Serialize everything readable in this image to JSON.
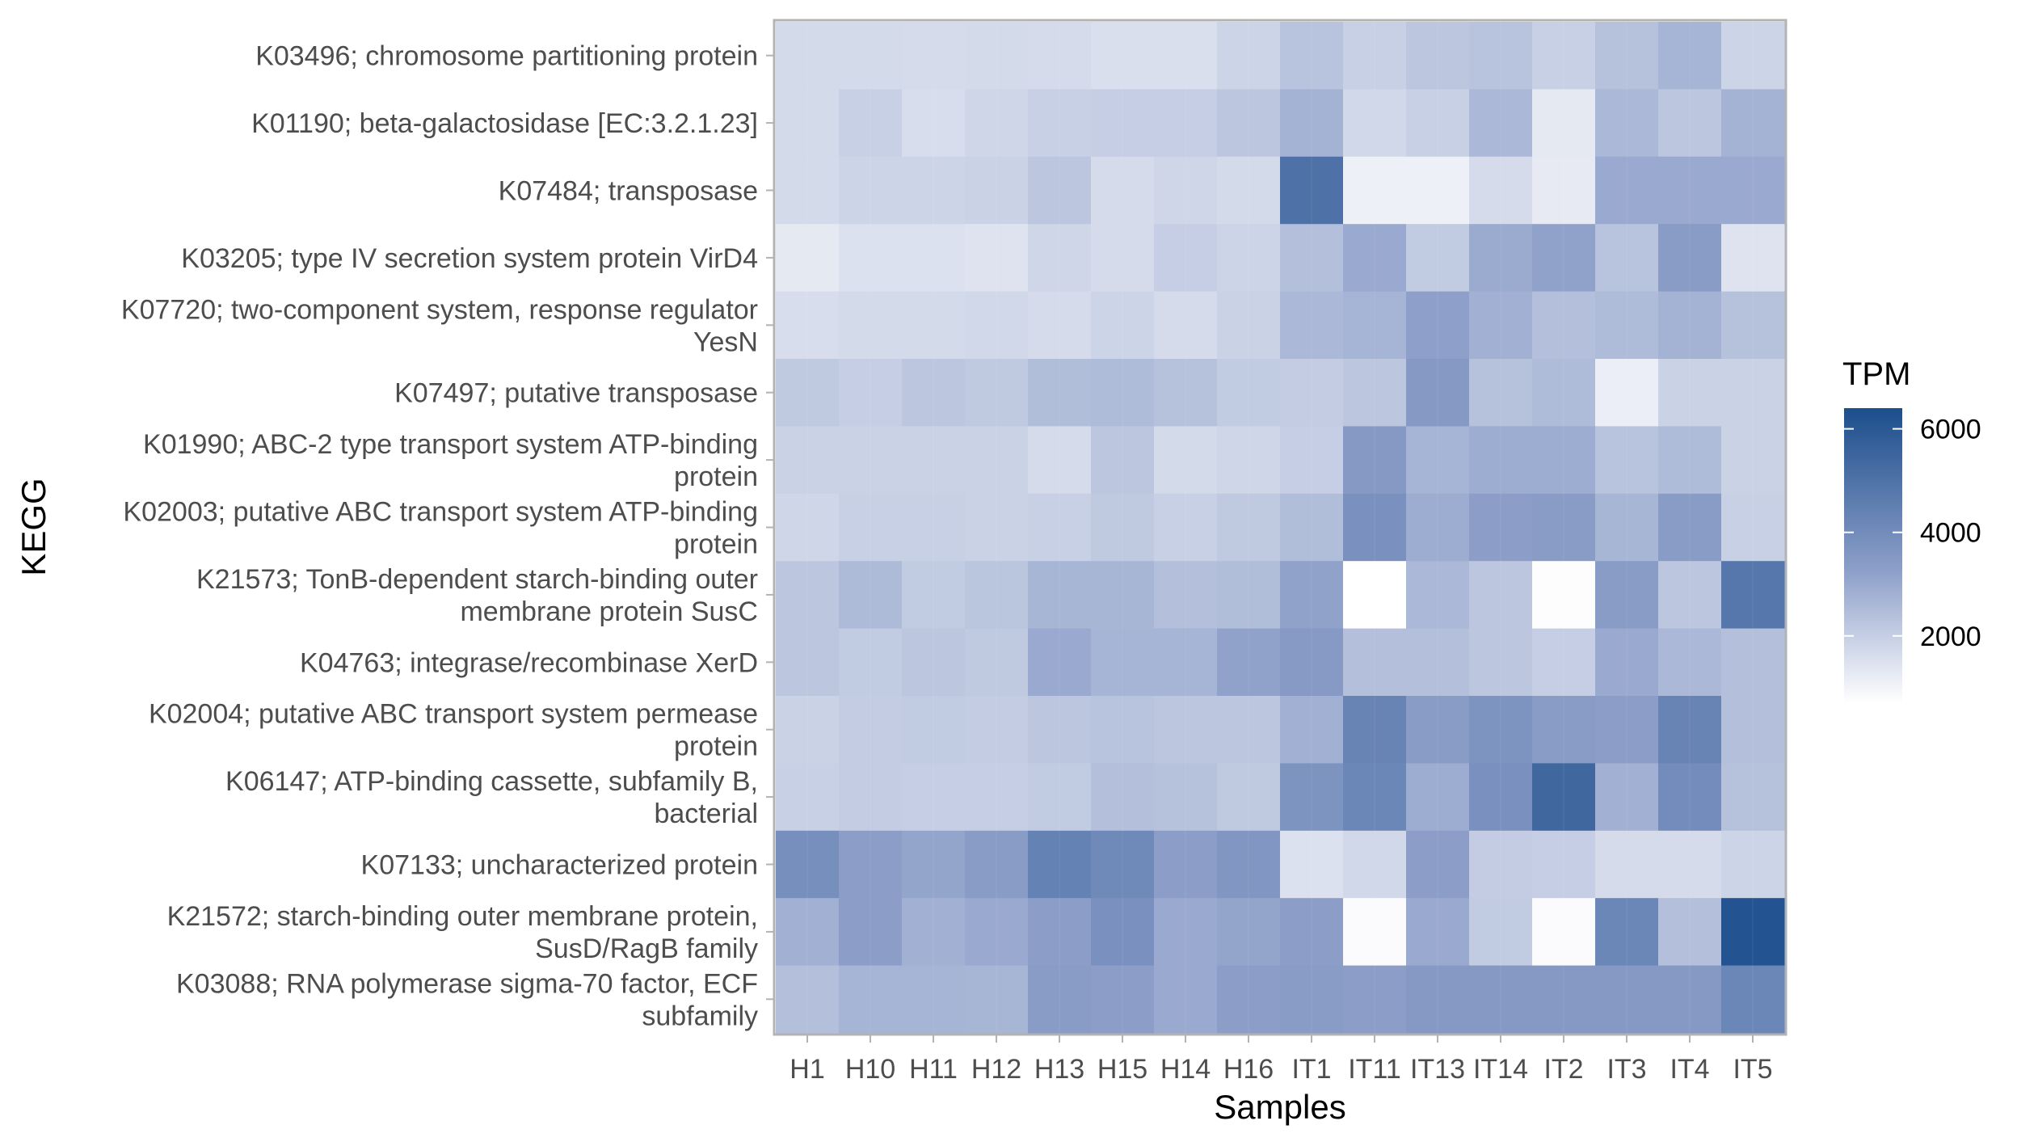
{
  "chart_data": {
    "type": "heatmap",
    "xlabel": "Samples",
    "ylabel": "KEGG",
    "x_categories": [
      "H1",
      "H10",
      "H11",
      "H12",
      "H13",
      "H15",
      "H14",
      "H16",
      "IT1",
      "IT11",
      "IT13",
      "IT14",
      "IT2",
      "IT3",
      "IT4",
      "IT5"
    ],
    "y_categories": [
      "K03496; chromosome partitioning protein",
      "K01190; beta-galactosidase [EC:3.2.1.23]",
      "K07484; transposase",
      "K03205; type IV secretion system protein VirD4",
      "K07720; two-component system, response regulator YesN",
      "K07497; putative transposase",
      "K01990; ABC-2 type transport system ATP-binding protein",
      "K02003; putative ABC transport system ATP-binding protein",
      "K21573; TonB-dependent starch-binding outer membrane protein SusC",
      "K04763; integrase/recombinase XerD",
      "K02004; putative ABC transport system permease protein",
      "K06147; ATP-binding cassette, subfamily B, bacterial",
      "K07133; uncharacterized protein",
      "K21572; starch-binding outer membrane protein, SusD/RagB family",
      "K03088; RNA polymerase sigma-70 factor, ECF subfamily"
    ],
    "y_label_lines": [
      [
        "K03496; chromosome partitioning protein"
      ],
      [
        "K01190; beta-galactosidase [EC:3.2.1.23]"
      ],
      [
        "K07484; transposase"
      ],
      [
        "K03205; type IV secretion system protein VirD4"
      ],
      [
        "K07720; two-component system, response regulator",
        "YesN"
      ],
      [
        "K07497; putative transposase"
      ],
      [
        "K01990; ABC-2 type transport system ATP-binding",
        "protein"
      ],
      [
        "K02003; putative ABC transport system ATP-binding",
        "protein"
      ],
      [
        "K21573; TonB-dependent starch-binding outer",
        "membrane protein SusC"
      ],
      [
        "K04763; integrase/recombinase XerD"
      ],
      [
        "K02004; putative ABC transport system permease",
        "protein"
      ],
      [
        "K06147; ATP-binding cassette, subfamily B,",
        "bacterial"
      ],
      [
        "K07133; uncharacterized protein"
      ],
      [
        "K21572; starch-binding outer membrane protein,",
        "SusD/RagB family"
      ],
      [
        "K03088; RNA polymerase sigma-70 factor, ECF",
        "subfamily"
      ]
    ],
    "values": [
      [
        1700,
        1700,
        1650,
        1700,
        1650,
        1550,
        1550,
        1850,
        2300,
        1950,
        2200,
        2300,
        1950,
        2350,
        2700,
        1850
      ],
      [
        1700,
        1950,
        1600,
        1800,
        1950,
        2000,
        2000,
        2200,
        2750,
        1750,
        1950,
        2600,
        1300,
        2600,
        2200,
        2750
      ],
      [
        1700,
        1850,
        1850,
        1900,
        2200,
        1650,
        1800,
        1700,
        5000,
        1100,
        1100,
        1650,
        1250,
        3000,
        3000,
        3000
      ],
      [
        1300,
        1500,
        1500,
        1450,
        1800,
        1650,
        2000,
        1850,
        2400,
        3000,
        2100,
        2950,
        3200,
        2300,
        3400,
        1450
      ],
      [
        1600,
        1700,
        1700,
        1750,
        1650,
        1850,
        1650,
        1900,
        2600,
        2700,
        3250,
        2800,
        2400,
        2500,
        2750,
        2350
      ],
      [
        2150,
        2000,
        2200,
        2150,
        2450,
        2500,
        2350,
        2100,
        2050,
        2200,
        3500,
        2350,
        2500,
        1150,
        1900,
        1900
      ],
      [
        1900,
        1900,
        1900,
        1900,
        1650,
        2200,
        1700,
        1800,
        2000,
        3500,
        2700,
        2900,
        2900,
        2300,
        2500,
        1900
      ],
      [
        1800,
        1950,
        1950,
        1900,
        1950,
        2150,
        1950,
        2150,
        2450,
        3800,
        2900,
        3300,
        3400,
        2650,
        3400,
        1950
      ],
      [
        2200,
        2550,
        2100,
        2250,
        2650,
        2650,
        2400,
        2450,
        3200,
        700,
        2600,
        2200,
        750,
        3400,
        2200,
        4800
      ],
      [
        2200,
        2100,
        2200,
        2150,
        3000,
        2700,
        2700,
        3200,
        3450,
        2400,
        2400,
        2200,
        2000,
        3000,
        2600,
        2400
      ],
      [
        1900,
        2050,
        2100,
        2050,
        2200,
        2300,
        2200,
        2200,
        2800,
        4300,
        3400,
        3700,
        3400,
        3300,
        4300,
        2400
      ],
      [
        1950,
        2050,
        2000,
        2000,
        2100,
        2400,
        2350,
        2150,
        3700,
        4200,
        2900,
        3800,
        5400,
        2800,
        4000,
        2350
      ],
      [
        3900,
        3300,
        3100,
        3400,
        4400,
        4100,
        3300,
        3600,
        1500,
        1750,
        3300,
        2050,
        2000,
        1650,
        1650,
        1850
      ],
      [
        2800,
        3300,
        2800,
        3000,
        3300,
        3800,
        3000,
        3100,
        3300,
        800,
        3000,
        2100,
        800,
        4200,
        2400,
        6200
      ],
      [
        2400,
        2700,
        2700,
        2650,
        3400,
        3300,
        3000,
        3300,
        3400,
        3300,
        3500,
        3500,
        3500,
        3500,
        3500,
        4200
      ]
    ],
    "color_scale": {
      "title": "TPM",
      "low_color": "#ffffff",
      "mid_color": "#8d9fc9",
      "high_color": "#1c4e8c",
      "range": [
        700,
        6400
      ],
      "ticks": [
        2000,
        4000,
        6000
      ]
    },
    "grid": true,
    "legend_position": "right"
  }
}
